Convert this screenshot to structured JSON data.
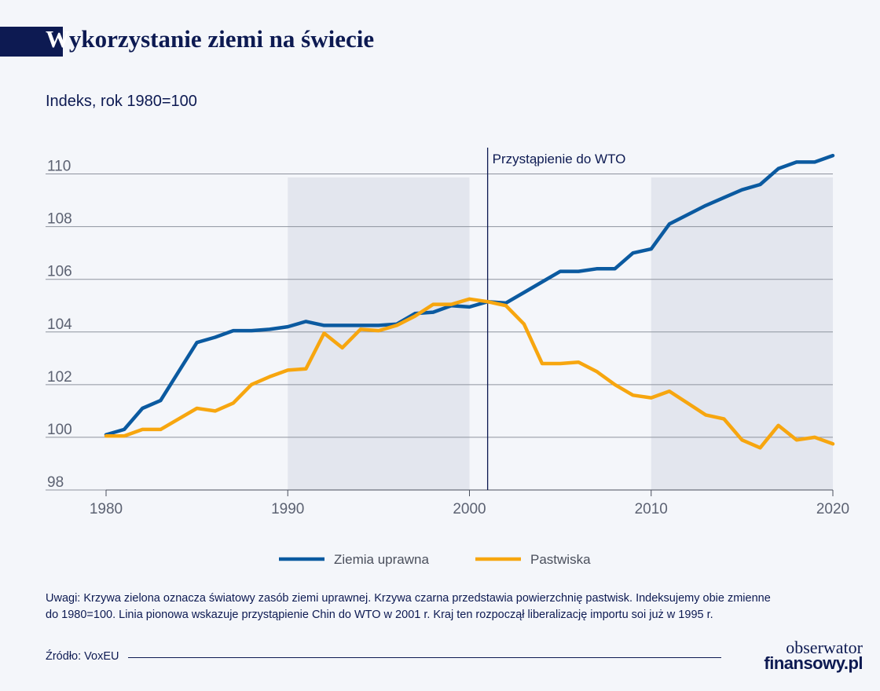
{
  "header": {
    "title_first": "W",
    "title_rest": "ykorzystanie ziemi na świecie",
    "subtitle": "Indeks, rok 1980=100"
  },
  "footer": {
    "note_line1": "Uwagi: Krzywa zielona oznacza światowy zasób ziemi uprawnej. Krzywa czarna przedstawia powierzchnię pastwisk. Indeksujemy obie zmienne",
    "note_line2": "do 1980=100. Linia pionowa wskazuje przystąpienie Chin do WTO w 2001 r. Kraj ten rozpoczął liberalizację importu soi już w 1995 r.",
    "source": "Źródło: VoxEU",
    "logo_line1": "obserwator",
    "logo_line2": "finansowy.pl"
  },
  "chart_data": {
    "type": "line",
    "x": [
      1980,
      1981,
      1982,
      1983,
      1984,
      1985,
      1986,
      1987,
      1988,
      1989,
      1990,
      1991,
      1992,
      1993,
      1994,
      1995,
      1996,
      1997,
      1998,
      1999,
      2000,
      2001,
      2002,
      2003,
      2004,
      2005,
      2006,
      2007,
      2008,
      2009,
      2010,
      2011,
      2012,
      2013,
      2014,
      2015,
      2016,
      2017,
      2018,
      2019,
      2020
    ],
    "series": [
      {
        "name": "Ziemia uprawna",
        "color": "#0b5aa0",
        "values": [
          100.1,
          100.3,
          101.1,
          101.4,
          102.5,
          103.6,
          103.8,
          104.05,
          104.05,
          104.1,
          104.2,
          104.4,
          104.25,
          104.25,
          104.25,
          104.25,
          104.3,
          104.7,
          104.75,
          105.0,
          104.95,
          105.15,
          105.1,
          105.5,
          105.9,
          106.3,
          106.3,
          106.4,
          106.4,
          107.0,
          107.15,
          108.1,
          108.45,
          108.8,
          109.1,
          109.4,
          109.6,
          110.2,
          110.45,
          110.45,
          110.7
        ]
      },
      {
        "name": "Pastwiska",
        "color": "#f7a60f",
        "values": [
          100.05,
          100.05,
          100.3,
          100.3,
          100.7,
          101.1,
          101.0,
          101.3,
          102.0,
          102.3,
          102.55,
          102.6,
          103.95,
          103.4,
          104.1,
          104.05,
          104.25,
          104.6,
          105.05,
          105.05,
          105.25,
          105.15,
          105.0,
          104.3,
          102.8,
          102.8,
          102.85,
          102.5,
          102.0,
          101.6,
          101.5,
          101.75,
          101.3,
          100.85,
          100.7,
          99.9,
          99.6,
          100.45,
          99.9,
          100.0,
          99.75
        ]
      }
    ],
    "ylim": [
      98,
      111
    ],
    "yticks": [
      98,
      100,
      102,
      104,
      106,
      108,
      110
    ],
    "xlim": [
      1980,
      2020
    ],
    "xticks": [
      1980,
      1990,
      2000,
      2010,
      2020
    ],
    "shaded_periods": [
      [
        1990,
        2000
      ],
      [
        2010,
        2020
      ]
    ],
    "vline": {
      "x": 2001,
      "label": "Przystąpienie do WTO"
    },
    "grid": true,
    "legend_placement": "bottom-center"
  }
}
